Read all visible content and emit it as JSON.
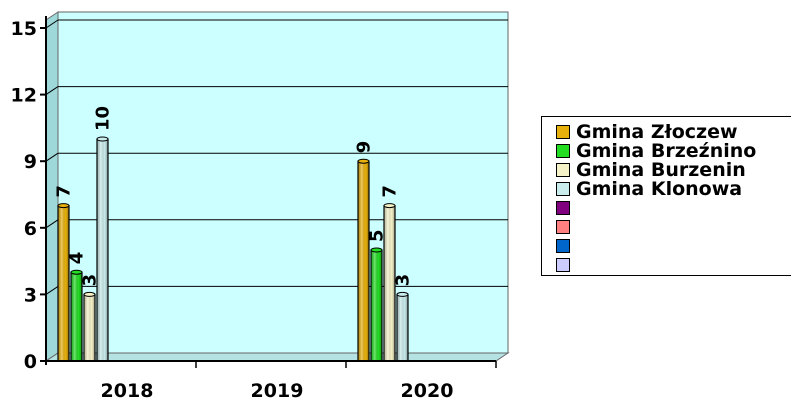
{
  "chart_data": {
    "type": "bar",
    "categories": [
      "2018",
      "2019",
      "2020"
    ],
    "series": [
      {
        "name": "Gmina Złoczew",
        "values": [
          7,
          null,
          9
        ],
        "labels": [
          "7",
          "",
          "9"
        ],
        "color": "#E8B10C"
      },
      {
        "name": "Gmina Brzeźnino",
        "values": [
          4,
          null,
          5
        ],
        "labels": [
          "4",
          "",
          "5"
        ],
        "color": "#22DD22"
      },
      {
        "name": "Gmina Burzenin",
        "values": [
          3,
          null,
          7
        ],
        "labels": [
          "3",
          "",
          "7"
        ],
        "color": "#F5F2C8"
      },
      {
        "name": "Gmina Klonowa",
        "values": [
          10,
          null,
          3
        ],
        "labels": [
          "10",
          "",
          "3"
        ],
        "color": "#C9ECEC"
      }
    ],
    "extra_legend_colors": [
      "#800080",
      "#FF8080",
      "#0066CC",
      "#CCCCFF"
    ],
    "y_ticks": [
      "0",
      "3",
      "6",
      "9",
      "12",
      "15"
    ],
    "ylim": [
      0,
      15
    ],
    "grid": true,
    "plot_background": "#CCFFFF",
    "legend_position": "right"
  }
}
